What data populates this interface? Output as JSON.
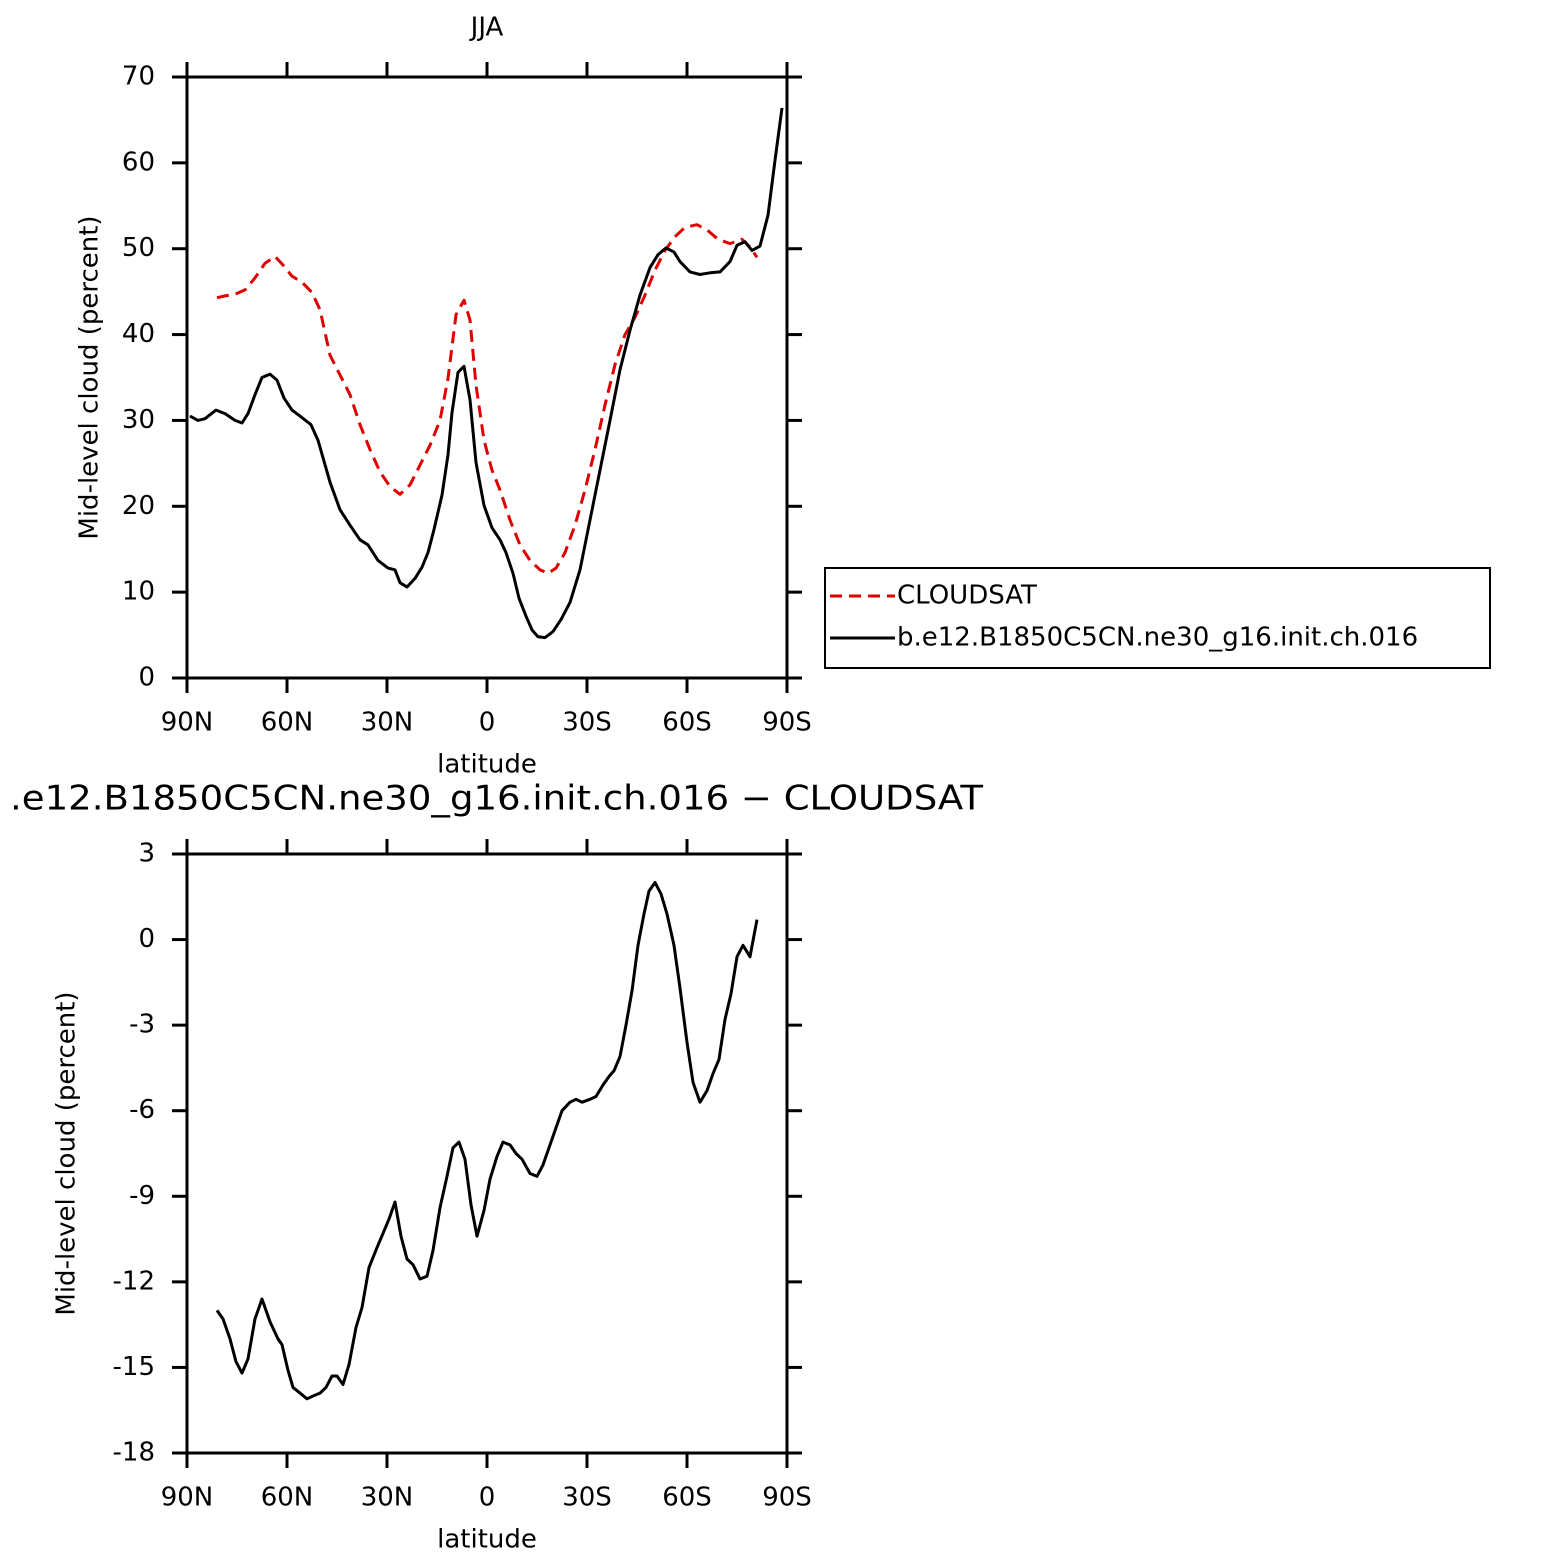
{
  "chart_data": [
    {
      "type": "line",
      "title": "JJA",
      "xlabel": "latitude",
      "ylabel": "Mid-level cloud (percent)",
      "xlim": [
        90,
        -90
      ],
      "xticks": [
        {
          "value": 90,
          "label": "90N"
        },
        {
          "value": 60,
          "label": "60N"
        },
        {
          "value": 30,
          "label": "30N"
        },
        0,
        {
          "value": -30,
          "label": "30S"
        },
        {
          "value": -60,
          "label": "60S"
        },
        {
          "value": -90,
          "label": "90S"
        }
      ],
      "ylim": [
        0,
        70
      ],
      "yticks": [
        0,
        10,
        20,
        30,
        40,
        50,
        60,
        70
      ],
      "legend": "right",
      "series": [
        {
          "name": "CLOUDSAT",
          "color": "#e00000",
          "style": "dashed",
          "x": [
            81,
            78.6,
            75.6,
            72.6,
            69.6,
            66.6,
            63.6,
            61.2,
            58.5,
            55.5,
            52.5,
            50.1,
            47.1,
            44.1,
            41.1,
            38.1,
            35.1,
            32.1,
            29.1,
            26.1,
            23.1,
            20.1,
            17.1,
            14.1,
            11.7,
            9.3,
            6.9,
            5.1,
            3.3,
            0.9,
            -1.5,
            -3.9,
            -6.9,
            -9.9,
            -12.9,
            -15.9,
            -18.3,
            -20.7,
            -23.4,
            -26.4,
            -29.4,
            -32.4,
            -35.4,
            -38.4,
            -41.4,
            -44.4,
            -47.4,
            -50.4,
            -53.4,
            -56.4,
            -59.4,
            -63,
            -66,
            -69.3,
            -72.9,
            -76.5,
            -78.9,
            -81
          ],
          "values": [
            44.3,
            44.5,
            44.7,
            45.2,
            46.6,
            48.3,
            49.1,
            48.1,
            46.8,
            46.1,
            44.9,
            42.9,
            37.6,
            35.3,
            33,
            29.5,
            26.6,
            24,
            22.3,
            21.4,
            22.5,
            24.8,
            27.1,
            30,
            34.9,
            42.3,
            44,
            41.7,
            34.1,
            27.7,
            24.2,
            21.9,
            18.4,
            15.5,
            13.7,
            12.6,
            12.2,
            12.8,
            14.6,
            17.8,
            21.9,
            26.6,
            31.8,
            36.5,
            40,
            42,
            44.6,
            47.5,
            49.8,
            51.4,
            52.5,
            52.8,
            52.2,
            51.1,
            50.6,
            51.1,
            50.2,
            49
          ]
        },
        {
          "name": "b.e12.B1850C5CN.ne30_g16.init.ch.016",
          "color": "#000000",
          "style": "solid",
          "x": [
            89.1,
            86.7,
            84.6,
            81.3,
            78.6,
            75.6,
            73.5,
            71.7,
            69.6,
            67.5,
            65.1,
            63,
            60.9,
            58.5,
            56.1,
            52.8,
            50.7,
            47.1,
            44.1,
            41.1,
            38.1,
            35.7,
            32.7,
            29.7,
            27.6,
            26.1,
            24,
            21.6,
            19.5,
            17.7,
            15.9,
            13.5,
            11.7,
            10.5,
            8.7,
            6.9,
            5.1,
            3.3,
            0.9,
            -1.5,
            -3.9,
            -5.7,
            -7.8,
            -9.6,
            -11.7,
            -13.5,
            -15.3,
            -17.4,
            -19.8,
            -22.2,
            -24.9,
            -27.9,
            -30.9,
            -33.9,
            -36.9,
            -39.9,
            -42.9,
            -45.9,
            -48.9,
            -51.3,
            -53.7,
            -56.1,
            -57.9,
            -60.9,
            -63.9,
            -66.9,
            -69.9,
            -72.9,
            -75,
            -77.4,
            -79.5,
            -81.9,
            -84.3,
            -86.4,
            -88.5
          ],
          "values": [
            30.5,
            30,
            30.2,
            31.2,
            30.8,
            30,
            29.7,
            30.8,
            33,
            35,
            35.4,
            34.7,
            32.6,
            31.2,
            30.5,
            29.5,
            27.7,
            22.8,
            19.6,
            17.8,
            16.1,
            15.5,
            13.7,
            12.8,
            12.6,
            11.1,
            10.6,
            11.6,
            12.9,
            14.6,
            17.3,
            21.3,
            26,
            30.9,
            35.6,
            36.3,
            32.4,
            25.1,
            20.1,
            17.5,
            16.1,
            14.6,
            12.2,
            9.3,
            7.2,
            5.6,
            4.8,
            4.7,
            5.4,
            6.8,
            8.8,
            12.6,
            18.4,
            24.2,
            30,
            35.9,
            40.5,
            44.6,
            47.8,
            49.3,
            50.1,
            49.6,
            48.5,
            47.3,
            47,
            47.2,
            47.3,
            48.5,
            50.4,
            50.8,
            49.8,
            50.3,
            53.9,
            60.3,
            66.4
          ]
        }
      ]
    },
    {
      "type": "line",
      "title": ".e12.B1850C5CN.ne30_g16.init.ch.016 − CLOUDSAT",
      "xlabel": "latitude",
      "ylabel": "Mid-level cloud (percent)",
      "xlim": [
        90,
        -90
      ],
      "xticks": [
        {
          "value": 90,
          "label": "90N"
        },
        {
          "value": 60,
          "label": "60N"
        },
        {
          "value": 30,
          "label": "30N"
        },
        0,
        {
          "value": -30,
          "label": "30S"
        },
        {
          "value": -60,
          "label": "60S"
        },
        {
          "value": -90,
          "label": "90S"
        }
      ],
      "ylim": [
        -18,
        3
      ],
      "yticks": [
        -18,
        -15,
        -12,
        -9,
        -6,
        -3,
        0,
        3
      ],
      "series": [
        {
          "color": "#000000",
          "style": "solid",
          "x": [
            81,
            79.2,
            77.1,
            75.3,
            73.5,
            71.7,
            69.6,
            67.5,
            65.1,
            62.7,
            61.5,
            59.7,
            58.2,
            56.1,
            54,
            52.2,
            50.1,
            48.3,
            46.5,
            45,
            43.2,
            41.4,
            39.3,
            37.5,
            35.4,
            33,
            31.2,
            29.4,
            27.6,
            25.8,
            24,
            22.2,
            20.1,
            18,
            16.2,
            14.1,
            12,
            10.2,
            8.4,
            6.6,
            4.8,
            3,
            0.9,
            -0.9,
            -3,
            -4.8,
            -6.9,
            -8.7,
            -10.5,
            -12.9,
            -15,
            -16.8,
            -18.9,
            -20.7,
            -22.5,
            -24.9,
            -26.7,
            -28.5,
            -30.9,
            -32.7,
            -34.8,
            -36.6,
            -38.1,
            -39.9,
            -41.7,
            -43.5,
            -45.3,
            -47.1,
            -48.6,
            -50.4,
            -52.2,
            -54,
            -56.1,
            -57.9,
            -60,
            -61.8,
            -63.9,
            -66,
            -67.8,
            -69.6,
            -71.4,
            -73.2,
            -75,
            -76.8,
            -78.9,
            -81
          ],
          "values": [
            -13,
            -13.3,
            -14,
            -14.8,
            -15.2,
            -14.7,
            -13.3,
            -12.6,
            -13.4,
            -14,
            -14.2,
            -15.1,
            -15.7,
            -15.9,
            -16.1,
            -16,
            -15.9,
            -15.7,
            -15.3,
            -15.3,
            -15.6,
            -14.9,
            -13.6,
            -12.9,
            -11.5,
            -10.8,
            -10.3,
            -9.8,
            -9.2,
            -10.4,
            -11.2,
            -11.4,
            -11.9,
            -11.8,
            -10.9,
            -9.4,
            -8.3,
            -7.3,
            -7.1,
            -7.7,
            -9.3,
            -10.4,
            -9.5,
            -8.4,
            -7.6,
            -7.1,
            -7.2,
            -7.5,
            -7.7,
            -8.2,
            -8.3,
            -7.9,
            -7.2,
            -6.6,
            -6,
            -5.7,
            -5.6,
            -5.7,
            -5.6,
            -5.5,
            -5.1,
            -4.8,
            -4.6,
            -4.1,
            -3,
            -1.8,
            -0.2,
            0.9,
            1.7,
            2,
            1.6,
            0.9,
            -0.2,
            -1.7,
            -3.6,
            -5,
            -5.7,
            -5.3,
            -4.7,
            -4.2,
            -2.8,
            -1.9,
            -0.6,
            -0.2,
            -0.6,
            0.7
          ]
        }
      ]
    }
  ]
}
